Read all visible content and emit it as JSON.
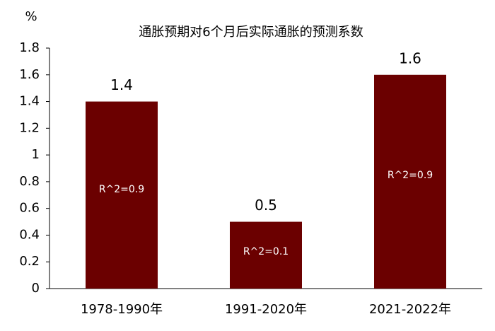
{
  "chart_data": {
    "type": "bar",
    "title": "通胀预期对6个月后实际通胀的预测系数",
    "y_label": "%",
    "categories": [
      "1978-1990年",
      "1991-2020年",
      "2021-2022年"
    ],
    "values": [
      1.4,
      0.5,
      1.6
    ],
    "annotations": [
      "R^2=0.9",
      "R^2=0.1",
      "R^2=0.9"
    ],
    "color": "#6b0000",
    "ylim": [
      0,
      1.8
    ],
    "yticks": [
      0,
      0.2,
      0.4,
      0.6,
      0.8,
      1,
      1.2,
      1.4,
      1.6,
      1.8
    ],
    "grid": false
  }
}
